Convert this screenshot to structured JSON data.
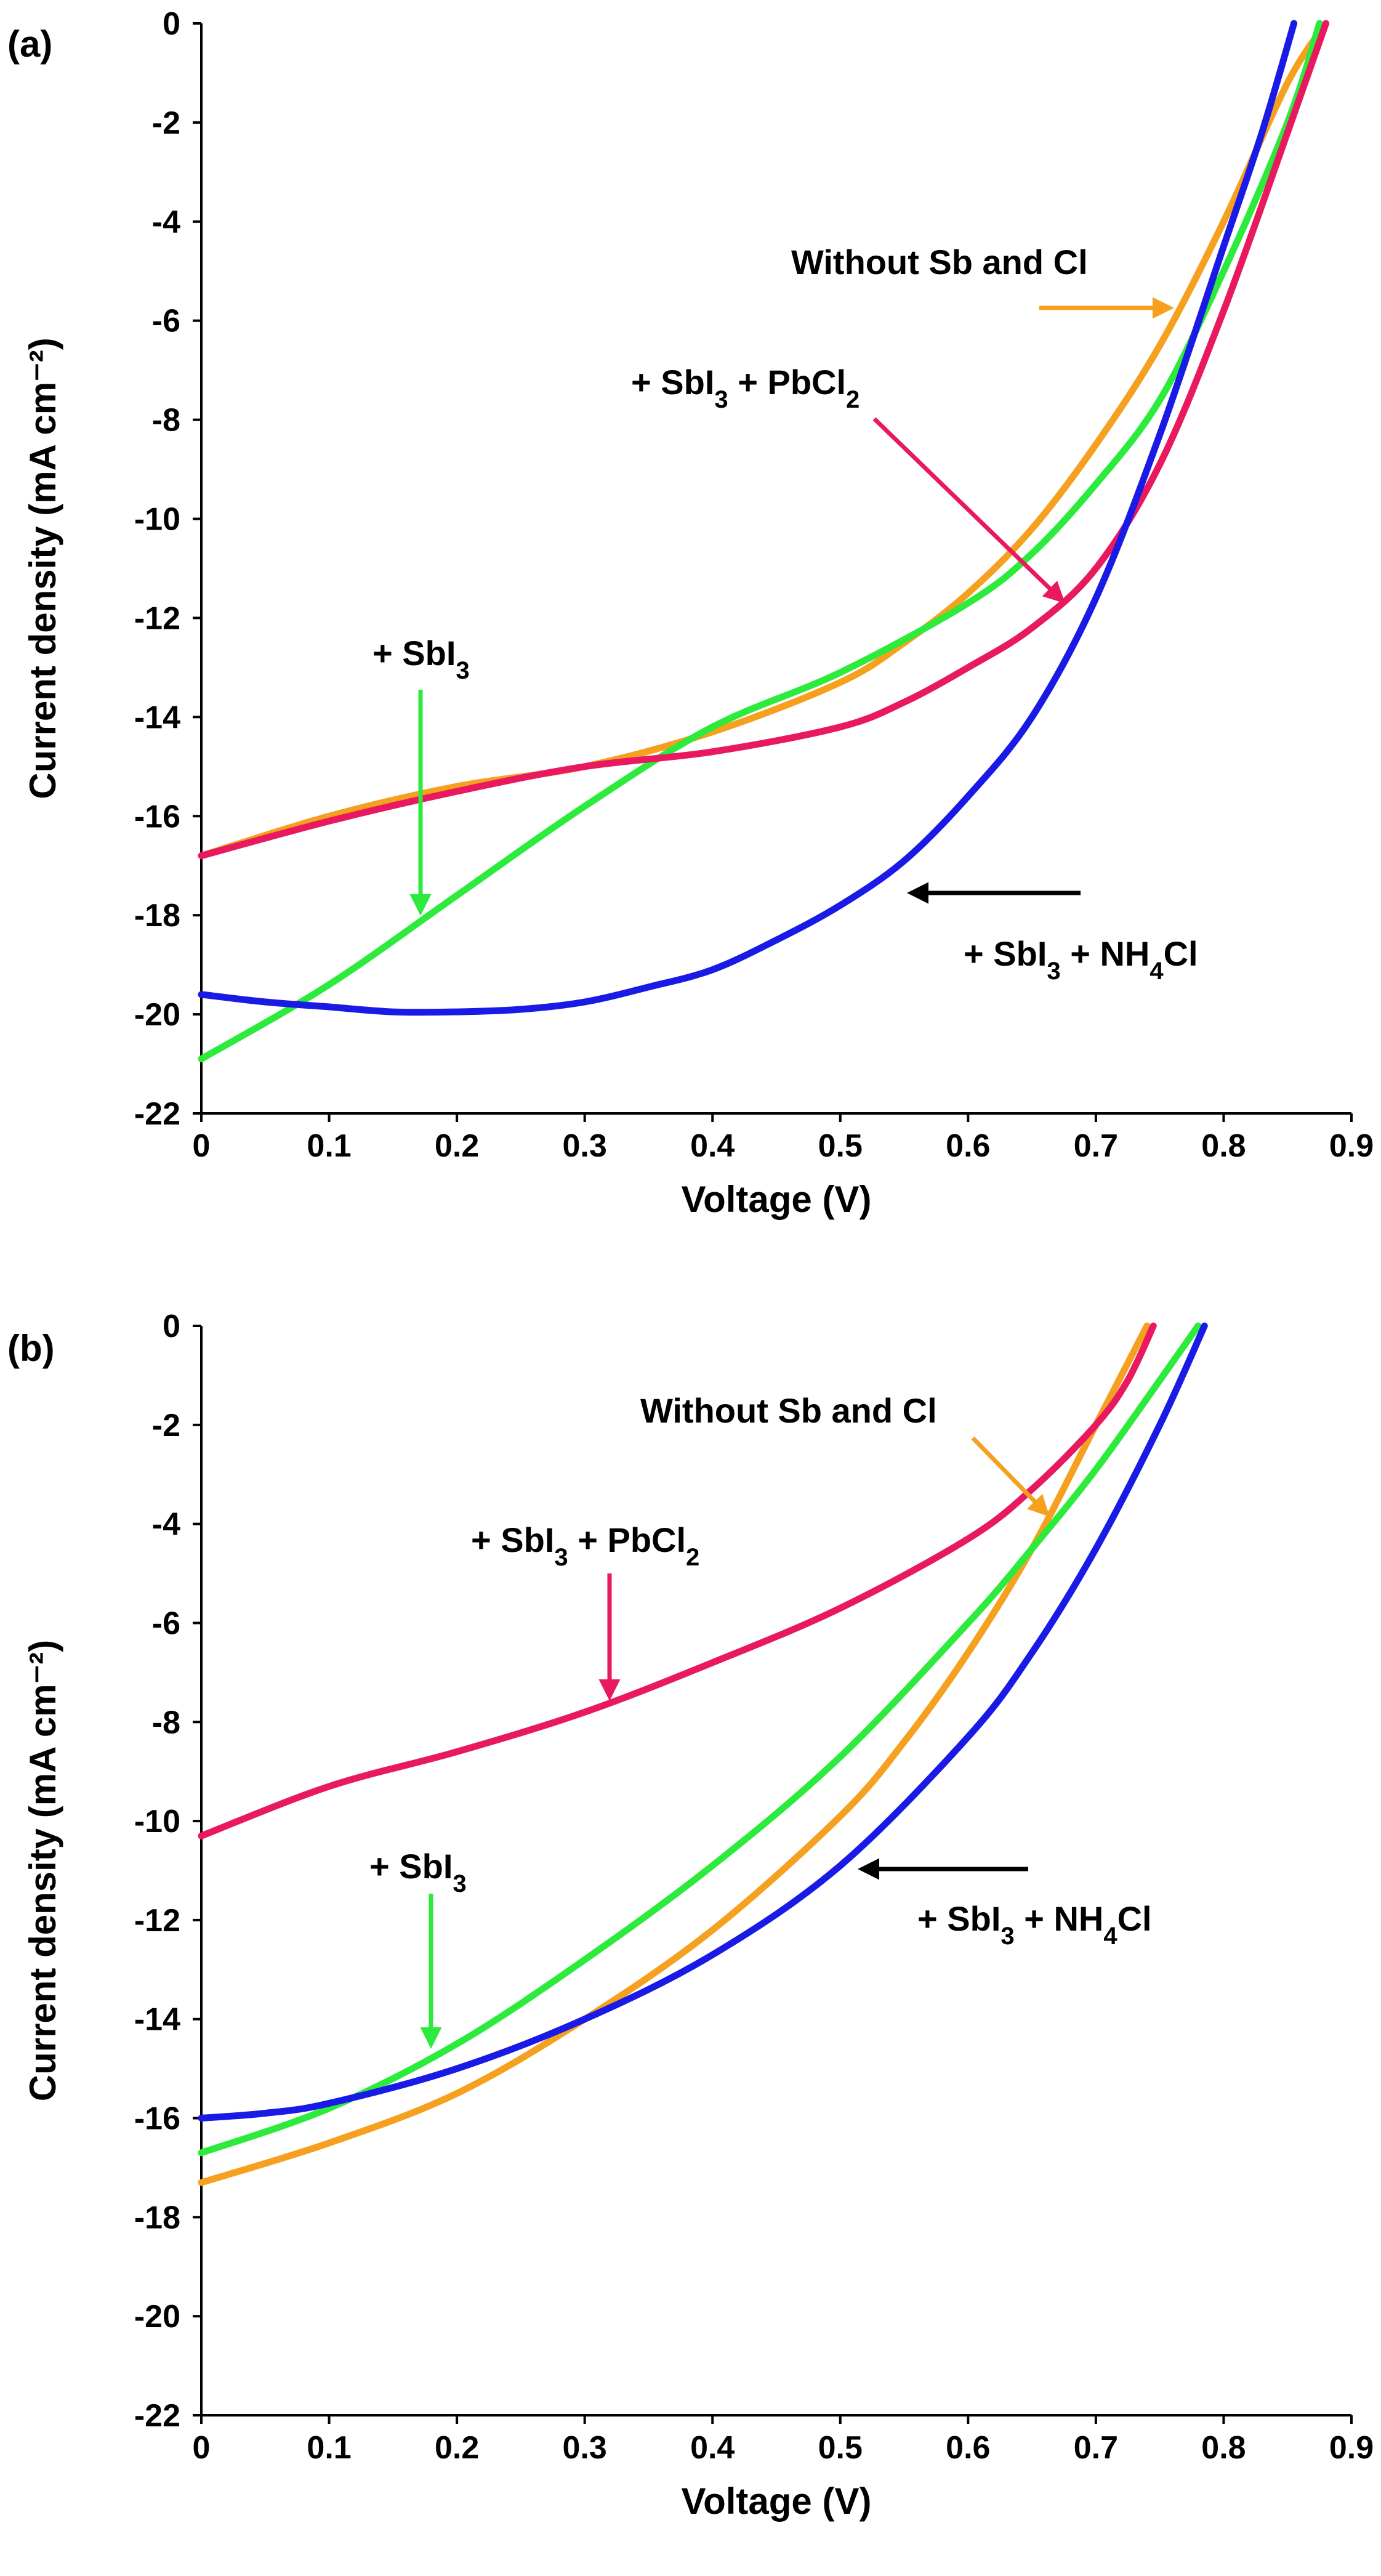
{
  "chart_data": [
    {
      "type": "line",
      "panel_label": "(a)",
      "xlabel": "Voltage (V)",
      "ylabel": "Current density (mA cm⁻²)",
      "xlim": [
        0,
        0.9
      ],
      "ylim": [
        -22,
        0
      ],
      "x_ticks": [
        "0",
        "0.1",
        "0.2",
        "0.3",
        "0.4",
        "0.5",
        "0.6",
        "0.7",
        "0.8",
        "0.9"
      ],
      "y_ticks": [
        "0",
        "-2",
        "-4",
        "-6",
        "-8",
        "-10",
        "-12",
        "-14",
        "-16",
        "-18",
        "-20",
        "-22"
      ],
      "series": [
        {
          "name": "Without Sb and Cl",
          "color": "#F5A01E",
          "x": [
            0,
            0.1,
            0.2,
            0.3,
            0.4,
            0.5,
            0.55,
            0.6,
            0.65,
            0.7,
            0.75,
            0.8,
            0.85,
            0.88
          ],
          "y": [
            -16.8,
            -16.0,
            -15.4,
            -15.0,
            -14.3,
            -13.3,
            -12.5,
            -11.5,
            -10.2,
            -8.5,
            -6.5,
            -4.0,
            -1.2,
            0
          ]
        },
        {
          "name": "+ SbI3",
          "color": "#2CEB3C",
          "x": [
            0,
            0.1,
            0.2,
            0.3,
            0.4,
            0.5,
            0.6,
            0.65,
            0.7,
            0.75,
            0.8,
            0.85,
            0.875
          ],
          "y": [
            -20.9,
            -19.4,
            -17.6,
            -15.8,
            -14.2,
            -13.1,
            -11.7,
            -10.7,
            -9.3,
            -7.6,
            -5.0,
            -2.0,
            0
          ]
        },
        {
          "name": "+ SbI3 + PbCl2",
          "color": "#E8195F",
          "x": [
            0,
            0.1,
            0.2,
            0.3,
            0.4,
            0.5,
            0.55,
            0.6,
            0.65,
            0.7,
            0.75,
            0.8,
            0.85,
            0.88
          ],
          "y": [
            -16.8,
            -16.1,
            -15.5,
            -15.0,
            -14.7,
            -14.2,
            -13.7,
            -13.0,
            -12.2,
            -11.0,
            -8.9,
            -5.8,
            -2.2,
            0
          ]
        },
        {
          "name": "+ SbI3 + NH4Cl",
          "color": "#1A1AE6",
          "x": [
            0,
            0.05,
            0.1,
            0.15,
            0.2,
            0.25,
            0.3,
            0.35,
            0.4,
            0.45,
            0.5,
            0.55,
            0.6,
            0.65,
            0.7,
            0.75,
            0.8,
            0.83,
            0.855
          ],
          "y": [
            -19.6,
            -19.75,
            -19.85,
            -19.95,
            -19.95,
            -19.9,
            -19.75,
            -19.45,
            -19.1,
            -18.5,
            -17.8,
            -16.9,
            -15.6,
            -14.0,
            -11.6,
            -8.3,
            -4.5,
            -2.2,
            0
          ]
        }
      ],
      "annotations": [
        {
          "name": "Without Sb and Cl",
          "prefix": "Without Sb and Cl",
          "mid": "",
          "sub1": "",
          "tail": "",
          "sub2": "",
          "end": ""
        },
        {
          "name": "+ SbI3 + PbCl2",
          "prefix": "+ SbI",
          "sub1": "3",
          "mid": " + PbCl",
          "sub2": "2",
          "tail": "",
          "end": ""
        },
        {
          "name": "+ SbI3",
          "prefix": "+ SbI",
          "sub1": "3",
          "mid": "",
          "sub2": "",
          "tail": "",
          "end": ""
        },
        {
          "name": "+ SbI3 + NH4Cl",
          "prefix": "+ SbI",
          "sub1": "3",
          "mid": " + NH",
          "sub2": "4",
          "tail": "Cl",
          "end": ""
        }
      ]
    },
    {
      "type": "line",
      "panel_label": "(b)",
      "xlabel": "Voltage (V)",
      "ylabel": "Current density (mA cm⁻²)",
      "xlim": [
        0,
        0.9
      ],
      "ylim": [
        -22,
        0
      ],
      "x_ticks": [
        "0",
        "0.1",
        "0.2",
        "0.3",
        "0.4",
        "0.5",
        "0.6",
        "0.7",
        "0.8",
        "0.9"
      ],
      "y_ticks": [
        "0",
        "-2",
        "-4",
        "-6",
        "-8",
        "-10",
        "-12",
        "-14",
        "-16",
        "-18",
        "-20",
        "-22"
      ],
      "series": [
        {
          "name": "Without Sb and Cl",
          "color": "#F5A01E",
          "x": [
            0,
            0.1,
            0.2,
            0.3,
            0.4,
            0.5,
            0.55,
            0.6,
            0.65,
            0.7,
            0.74
          ],
          "y": [
            -17.3,
            -16.5,
            -15.5,
            -14.0,
            -12.2,
            -9.9,
            -8.4,
            -6.6,
            -4.5,
            -2.0,
            0
          ]
        },
        {
          "name": "+ SbI3",
          "color": "#2CEB3C",
          "x": [
            0,
            0.1,
            0.2,
            0.3,
            0.4,
            0.5,
            0.6,
            0.65,
            0.7,
            0.75,
            0.78
          ],
          "y": [
            -16.7,
            -15.8,
            -14.5,
            -12.8,
            -10.9,
            -8.7,
            -6.0,
            -4.5,
            -2.9,
            -1.1,
            0
          ]
        },
        {
          "name": "+ SbI3 + PbCl2",
          "color": "#E8195F",
          "x": [
            0,
            0.1,
            0.2,
            0.3,
            0.4,
            0.5,
            0.6,
            0.65,
            0.7,
            0.725,
            0.745
          ],
          "y": [
            -10.3,
            -9.3,
            -8.6,
            -7.8,
            -6.8,
            -5.7,
            -4.3,
            -3.3,
            -2.0,
            -1.1,
            0
          ]
        },
        {
          "name": "+ SbI3 + NH4Cl",
          "color": "#1A1AE6",
          "x": [
            0,
            0.05,
            0.1,
            0.2,
            0.3,
            0.4,
            0.5,
            0.6,
            0.65,
            0.7,
            0.75,
            0.785
          ],
          "y": [
            -16.0,
            -15.9,
            -15.7,
            -15.0,
            -14.0,
            -12.7,
            -10.9,
            -8.3,
            -6.6,
            -4.5,
            -2.0,
            0
          ]
        }
      ],
      "annotations": [
        {
          "name": "Without Sb and Cl",
          "prefix": "Without Sb and Cl",
          "mid": "",
          "sub1": "",
          "tail": "",
          "sub2": "",
          "end": ""
        },
        {
          "name": "+ SbI3 + PbCl2",
          "prefix": "+ SbI",
          "sub1": "3",
          "mid": " + PbCl",
          "sub2": "2",
          "tail": "",
          "end": ""
        },
        {
          "name": "+ SbI3",
          "prefix": "+ SbI",
          "sub1": "3",
          "mid": "",
          "sub2": "",
          "tail": "",
          "end": ""
        },
        {
          "name": "+ SbI3 + NH4Cl",
          "prefix": "+ SbI",
          "sub1": "3",
          "mid": " + NH",
          "sub2": "4",
          "tail": "Cl",
          "end": ""
        }
      ]
    }
  ]
}
